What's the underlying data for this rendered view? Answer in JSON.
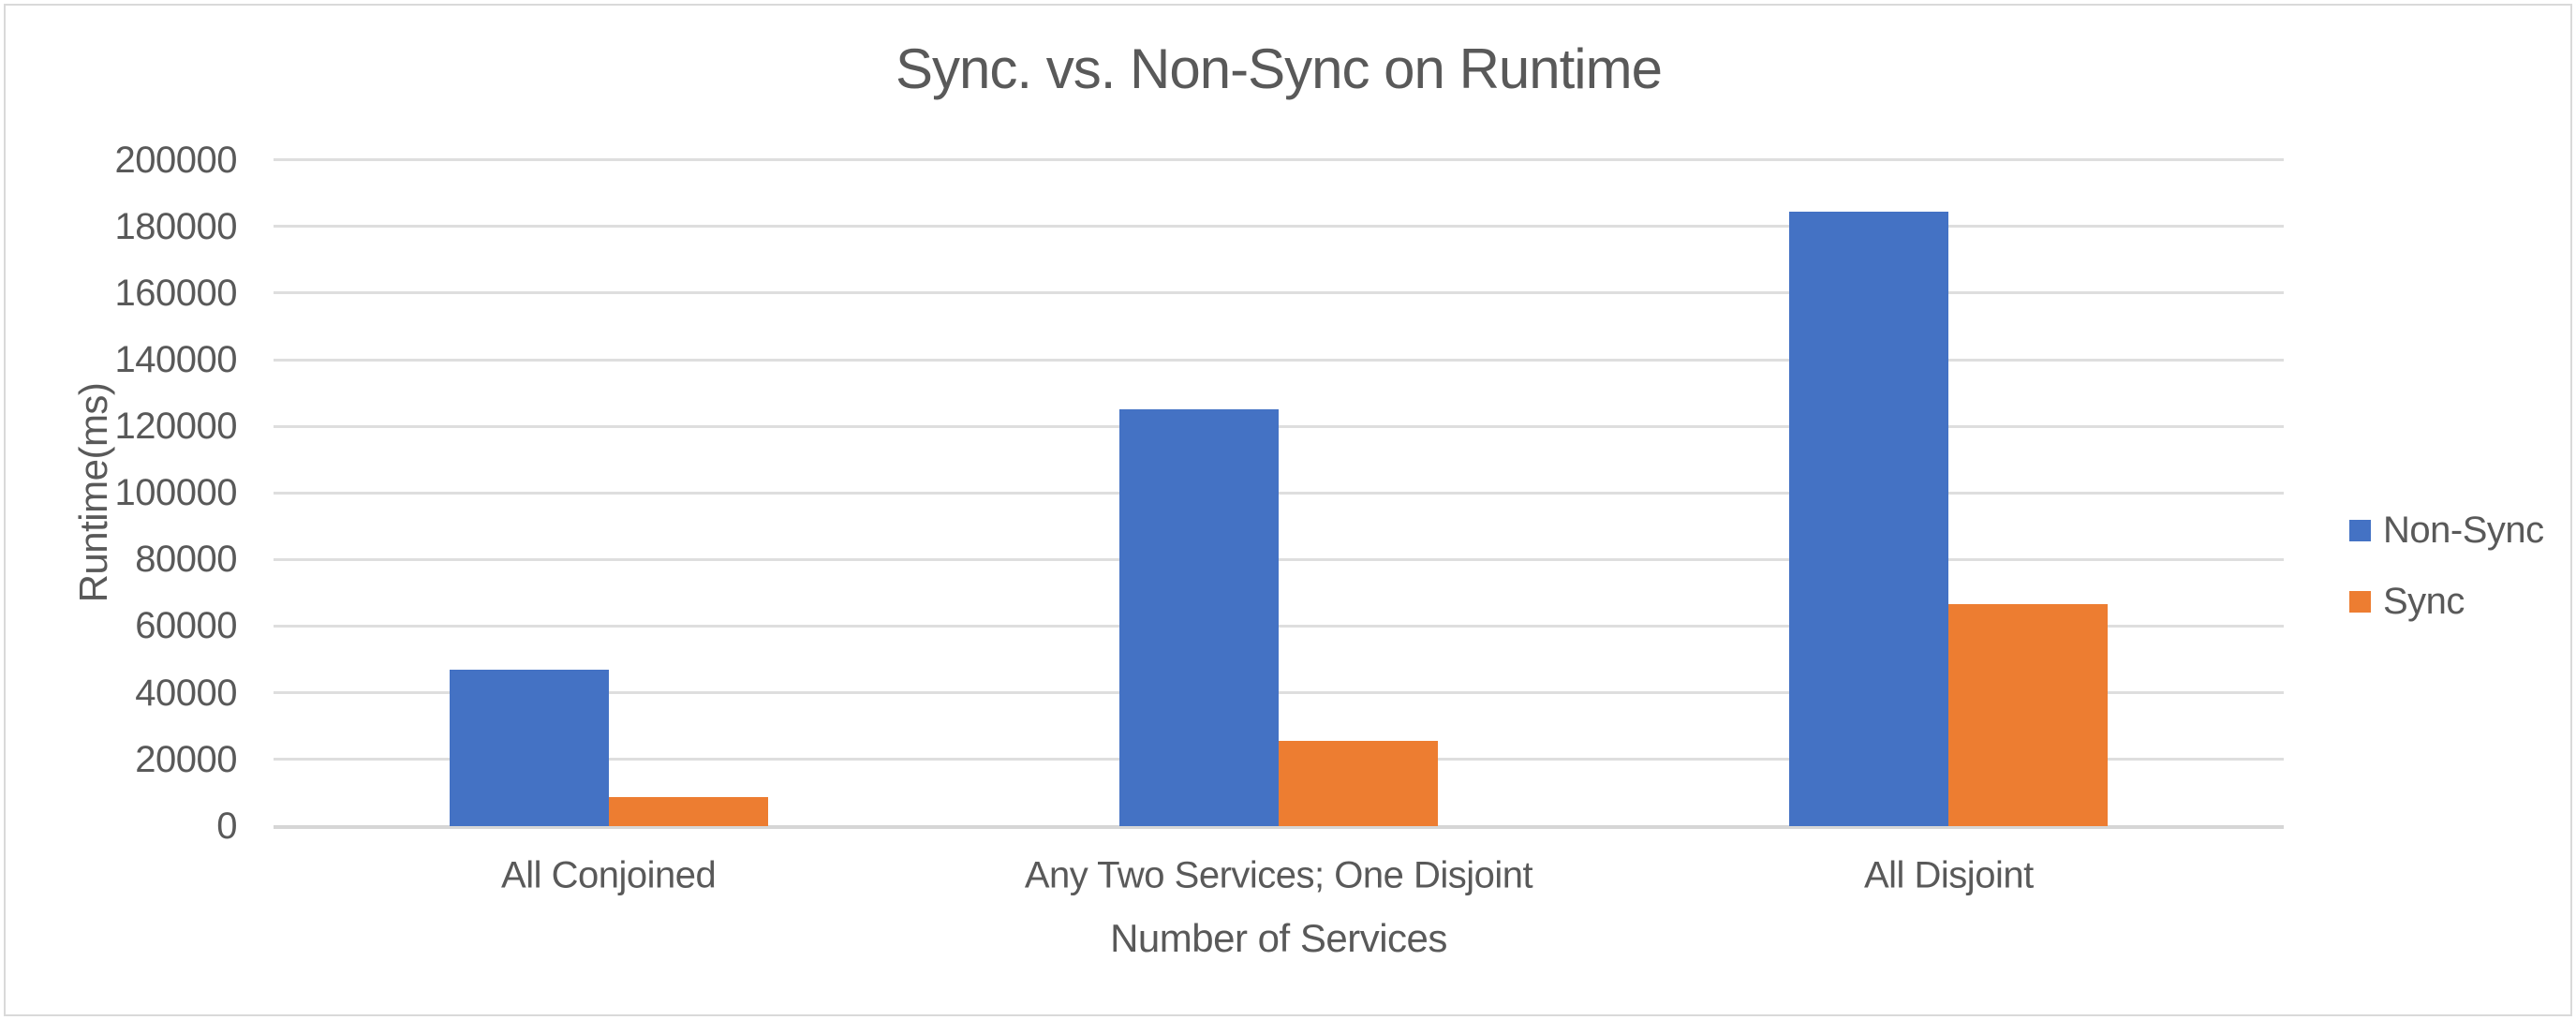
{
  "chart_data": {
    "type": "bar",
    "title": "Sync. vs. Non-Sync on Runtime",
    "xlabel": "Number of Services",
    "ylabel": "Runtime(ms)",
    "categories": [
      "All Conjoined",
      "Any Two Services; One Disjoint",
      "All Disjoint"
    ],
    "series": [
      {
        "name": "Non-Sync",
        "color": "#4472C4",
        "values": [
          47000,
          125000,
          184500
        ]
      },
      {
        "name": "Sync",
        "color": "#ED7D31",
        "values": [
          8500,
          25500,
          66500
        ]
      }
    ],
    "ylim": [
      0,
      200000
    ],
    "ytick_step": 20000,
    "yticks": [
      0,
      20000,
      40000,
      60000,
      80000,
      100000,
      120000,
      140000,
      160000,
      180000,
      200000
    ],
    "grid": true,
    "legend_position": "right",
    "colors": {
      "text": "#595959",
      "gridline": "#DEDEDE",
      "axis_line": "#D6D6D6",
      "background": "#FFFFFF",
      "frame_border": "#D9D9D9"
    }
  }
}
